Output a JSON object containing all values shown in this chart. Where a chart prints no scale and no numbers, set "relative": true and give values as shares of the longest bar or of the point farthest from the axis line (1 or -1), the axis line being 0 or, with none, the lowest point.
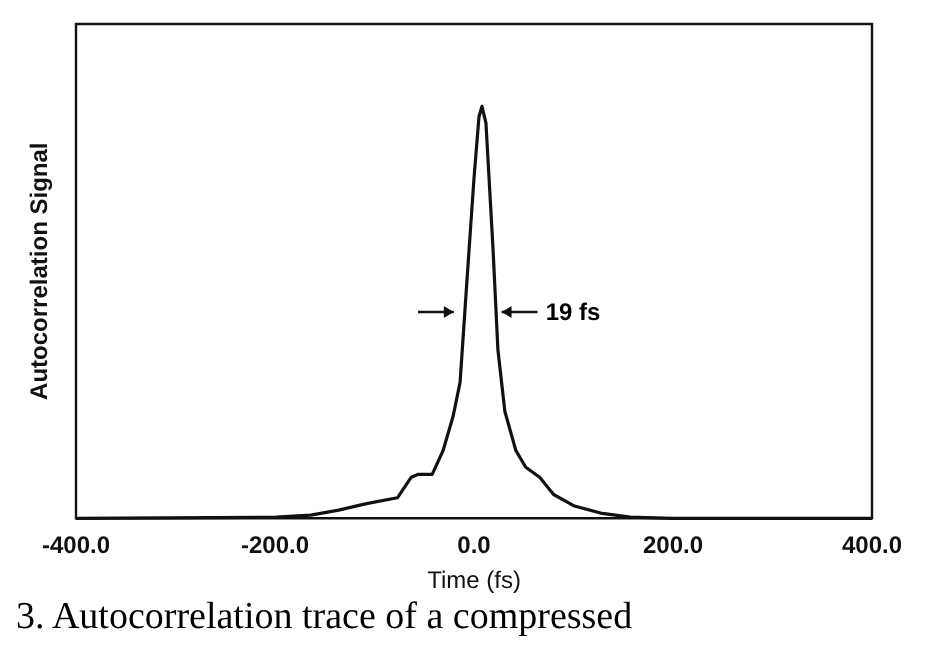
{
  "chart_data": {
    "type": "line",
    "xlabel": "Time (fs)",
    "ylabel": "Autocorrelation Signal",
    "relative": true,
    "xlim": [
      -400,
      400
    ],
    "xticks": [
      {
        "value": -400,
        "label": "-400.0"
      },
      {
        "value": -200,
        "label": "-200.0"
      },
      {
        "value": 0,
        "label": "0.0"
      },
      {
        "value": 200,
        "label": "200.0"
      },
      {
        "value": 400,
        "label": "400.0"
      }
    ],
    "series": [
      {
        "color": "#111111",
        "x": [
          -400,
          -199,
          -164,
          -136,
          -108,
          -77,
          -63,
          -56,
          -42,
          -31,
          -21,
          -14,
          -7,
          0,
          5,
          8,
          12,
          19,
          24,
          31,
          42,
          52,
          66,
          80,
          101,
          129,
          157,
          199,
          400
        ],
        "values": [
          0,
          0.003,
          0.008,
          0.02,
          0.036,
          0.05,
          0.1,
          0.107,
          0.107,
          0.165,
          0.248,
          0.33,
          0.58,
          0.826,
          0.975,
          1,
          0.96,
          0.66,
          0.41,
          0.26,
          0.165,
          0.124,
          0.1,
          0.058,
          0.03,
          0.012,
          0.003,
          0,
          0
        ]
      }
    ],
    "annotations": [
      "19 fs",
      "3.  Autocorrelation trace of a compressed"
    ],
    "grid": false,
    "legend": false,
    "marker": "none",
    "line_style": "solid"
  }
}
